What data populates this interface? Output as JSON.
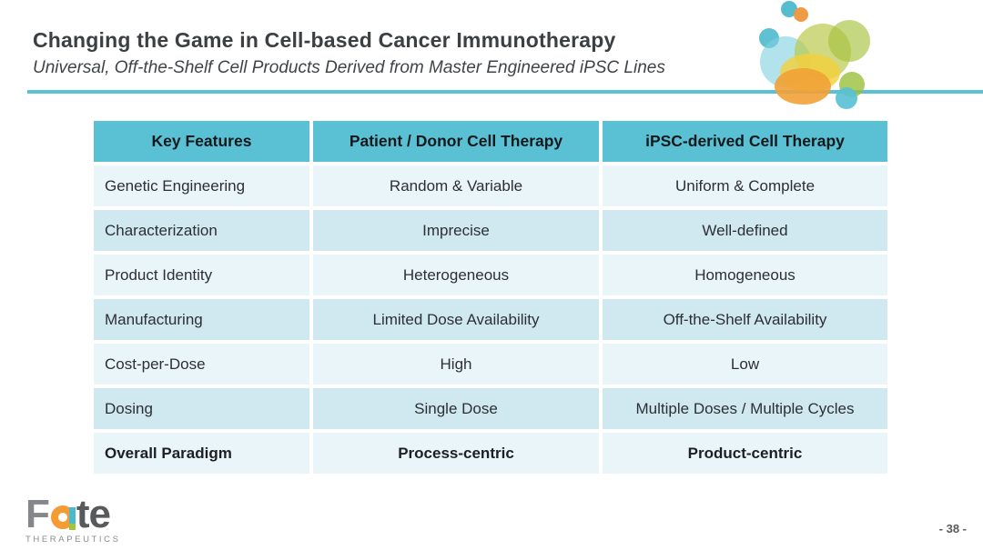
{
  "slide": {
    "title": "Changing the Game in Cell-based Cancer Immunotherapy",
    "subtitle": "Universal, Off-the-Shelf Cell Products Derived from Master Engineered iPSC Lines",
    "page_number": "- 38 -"
  },
  "logo": {
    "word_f": "F",
    "word_te": "te",
    "subtext": "THERAPEUTICS"
  },
  "table": {
    "columns": [
      "Key Features",
      "Patient / Donor Cell Therapy",
      "iPSC-derived Cell Therapy"
    ],
    "rows": [
      {
        "feature": "Genetic Engineering",
        "patient": "Random & Variable",
        "ipsc": "Uniform & Complete",
        "bold": false
      },
      {
        "feature": "Characterization",
        "patient": "Imprecise",
        "ipsc": "Well-defined",
        "bold": false
      },
      {
        "feature": "Product Identity",
        "patient": "Heterogeneous",
        "ipsc": "Homogeneous",
        "bold": false
      },
      {
        "feature": "Manufacturing",
        "patient": "Limited Dose Availability",
        "ipsc": "Off-the-Shelf Availability",
        "bold": false
      },
      {
        "feature": "Cost-per-Dose",
        "patient": "High",
        "ipsc": "Low",
        "bold": false
      },
      {
        "feature": "Dosing",
        "patient": "Single Dose",
        "ipsc": "Multiple Doses / Multiple Cycles",
        "bold": false
      },
      {
        "feature": "Overall Paradigm",
        "patient": "Process-centric",
        "ipsc": "Product-centric",
        "bold": true
      }
    ]
  },
  "colors": {
    "accent_teal": "#5ac1d4",
    "row_light": "#e9f5f8",
    "row_dark": "#d0e9f0",
    "header_text": "#15191b",
    "body_text": "#2c3033",
    "logo_gray_light": "#85878a",
    "logo_gray_dark": "#58595b",
    "logo_orange": "#f49b33",
    "logo_green": "#a3c53a",
    "bubble_orange": "#f0953c",
    "bubble_yellow": "#f4d03a",
    "bubble_olive": "#b9c94d"
  }
}
